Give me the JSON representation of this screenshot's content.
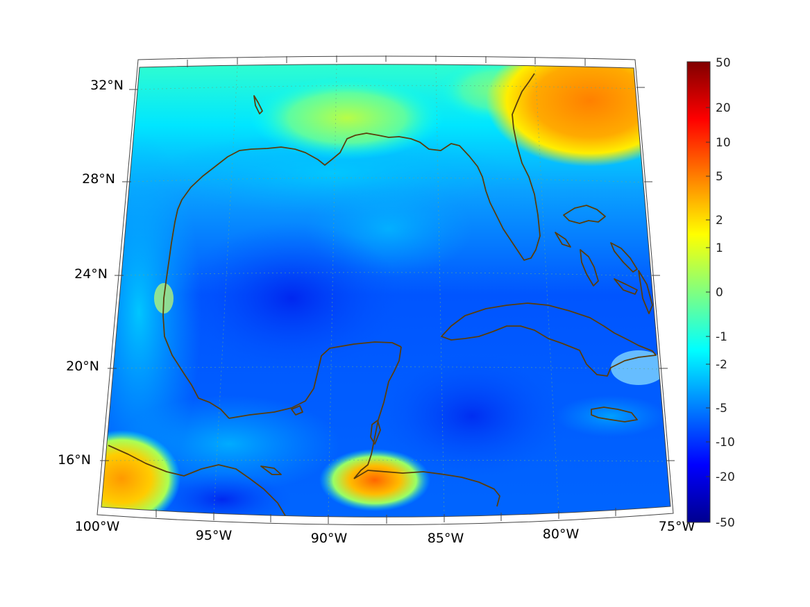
{
  "map": {
    "region": "Gulf of Mexico and Caribbean",
    "projection": "conic",
    "lon_range": [
      -100,
      -75
    ],
    "lat_range": [
      14,
      33
    ],
    "coastline_color": "#5a3d0a",
    "graticule": "dotted"
  },
  "axes": {
    "lat_labels": [
      {
        "lat": 32,
        "label": "32°N"
      },
      {
        "lat": 28,
        "label": "28°N"
      },
      {
        "lat": 24,
        "label": "24°N"
      },
      {
        "lat": 20,
        "label": "20°N"
      },
      {
        "lat": 16,
        "label": "16°N"
      }
    ],
    "lon_labels": [
      {
        "lon": -100,
        "label": "100°W"
      },
      {
        "lon": -95,
        "label": "95°W"
      },
      {
        "lon": -90,
        "label": "90°W"
      },
      {
        "lon": -85,
        "label": "85°W"
      },
      {
        "lon": -80,
        "label": "80°W"
      },
      {
        "lon": -75,
        "label": "75°W"
      }
    ]
  },
  "colorbar": {
    "colormap": "jet",
    "scale": "symmetric-log",
    "range": [
      -50,
      50
    ],
    "tick_labels": [
      "50",
      "20",
      "10",
      "5",
      "2",
      "1",
      "0",
      "-1",
      "-2",
      "-5",
      "-10",
      "-20",
      "-50"
    ]
  },
  "colors": {
    "deep_negative": "#00008f",
    "negative": "#0040ff",
    "near_zero": "#80ff80",
    "positive": "#ff8000",
    "high_positive": "#800000"
  }
}
